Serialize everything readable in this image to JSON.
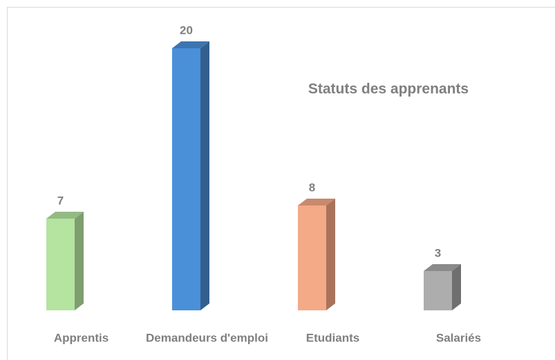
{
  "chart_data": {
    "type": "bar3d",
    "title": "Statuts des apprenants",
    "categories": [
      "Apprentis",
      "Demandeurs d'emploi",
      "Etudiants",
      "Salariés"
    ],
    "values": [
      7,
      20,
      8,
      3
    ],
    "colors": [
      "#b5e3a0",
      "#4a90d9",
      "#f4a987",
      "#adadad"
    ],
    "side_colors": [
      "#7e9e70",
      "#335f8f",
      "#a8735a",
      "#6f6f6f"
    ],
    "top_colors": [
      "#94ba83",
      "#3d75b0",
      "#c88a6d",
      "#8a8a8a"
    ]
  }
}
